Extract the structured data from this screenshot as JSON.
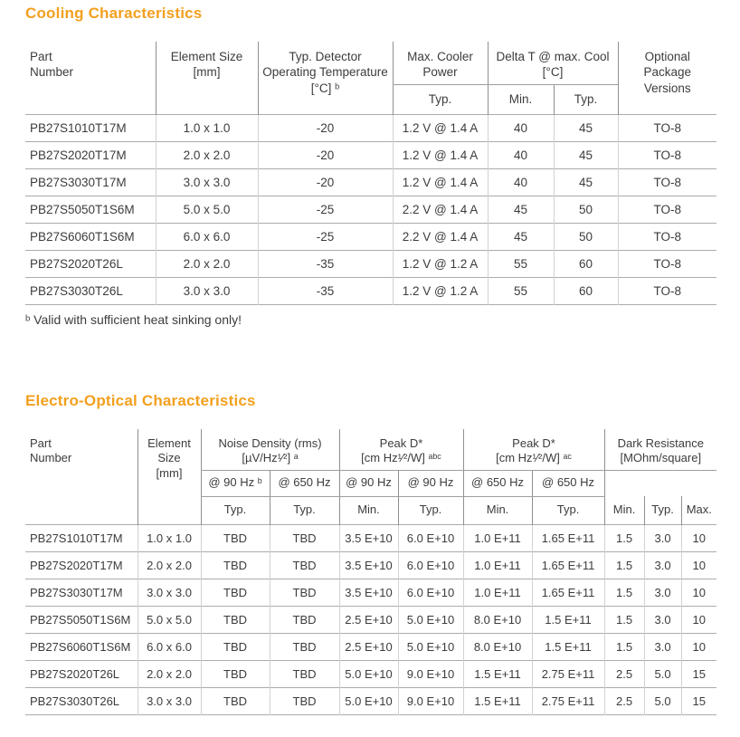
{
  "colors": {
    "accent_orange": "#f3a01f",
    "text": "#3c3c3c",
    "header_line": "#8f8f8f",
    "row_line": "#ababab",
    "column_line": "#d2d2d2"
  },
  "cooling": {
    "title": "Cooling Characteristics",
    "header": {
      "part_number": "Part\nNumber",
      "element_size": "Element Size\n[mm]",
      "detector_temp": "Typ. Detector\nOperating Temperature\n[°C] ᵇ",
      "cooler_power": "Max. Cooler\nPower",
      "delta_t": "Delta T @ max. Cool\n[°C]",
      "package": "Optional Package\nVersions",
      "subs": [
        "Typ.",
        "Min.",
        "Typ."
      ]
    },
    "rows": [
      [
        "PB27S1010T17M",
        "1.0 x 1.0",
        "-20",
        "1.2 V @ 1.4 A",
        "40",
        "45",
        "TO-8"
      ],
      [
        "PB27S2020T17M",
        "2.0 x 2.0",
        "-20",
        "1.2 V @ 1.4 A",
        "40",
        "45",
        "TO-8"
      ],
      [
        "PB27S3030T17M",
        "3.0 x 3.0",
        "-20",
        "1.2 V @ 1.4 A",
        "40",
        "45",
        "TO-8"
      ],
      [
        "PB27S5050T1S6M",
        "5.0 x 5.0",
        "-25",
        "2.2 V @ 1.4 A",
        "45",
        "50",
        "TO-8"
      ],
      [
        "PB27S6060T1S6M",
        "6.0 x 6.0",
        "-25",
        "2.2 V @ 1.4 A",
        "45",
        "50",
        "TO-8"
      ],
      [
        "PB27S2020T26L",
        "2.0 x 2.0",
        "-35",
        "1.2 V @ 1.2 A",
        "55",
        "60",
        "TO-8"
      ],
      [
        "PB27S3030T26L",
        "3.0 x 3.0",
        "-35",
        "1.2 V @ 1.2 A",
        "55",
        "60",
        "TO-8"
      ]
    ],
    "footnote": "ᵇ Valid with sufficient heat sinking only!"
  },
  "electro": {
    "title": "Electro-Optical Characteristics",
    "header": {
      "part_number": "Part\nNumber",
      "element_size": "Element\nSize\n[mm]",
      "noise_density": "Noise Density (rms)\n[µV/Hz¹⁄²] ᵃ",
      "peak_d_90": "Peak D*\n[cm Hz¹⁄²/W] ᵃᵇᶜ",
      "peak_d_650": "Peak D*\n[cm Hz¹⁄²/W] ᵃᶜ",
      "dark_resistance": "Dark Resistance\n[MOhm/square]",
      "freqs": [
        "@ 90 Hz ᵇ",
        "@ 650 Hz",
        "@ 90 Hz",
        "@ 90 Hz",
        "@ 650 Hz",
        "@ 650 Hz"
      ],
      "stats": [
        "Typ.",
        "Typ.",
        "Min.",
        "Typ.",
        "Min.",
        "Typ.",
        "Min.",
        "Typ.",
        "Max."
      ]
    },
    "rows": [
      [
        "PB27S1010T17M",
        "1.0 x 1.0",
        "TBD",
        "TBD",
        "3.5 E+10",
        "6.0 E+10",
        "1.0 E+11",
        "1.65 E+11",
        "1.5",
        "3.0",
        "10"
      ],
      [
        "PB27S2020T17M",
        "2.0 x 2.0",
        "TBD",
        "TBD",
        "3.5 E+10",
        "6.0 E+10",
        "1.0 E+11",
        "1.65 E+11",
        "1.5",
        "3.0",
        "10"
      ],
      [
        "PB27S3030T17M",
        "3.0 x 3.0",
        "TBD",
        "TBD",
        "3.5 E+10",
        "6.0 E+10",
        "1.0 E+11",
        "1.65 E+11",
        "1.5",
        "3.0",
        "10"
      ],
      [
        "PB27S5050T1S6M",
        "5.0 x 5.0",
        "TBD",
        "TBD",
        "2.5 E+10",
        "5.0 E+10",
        "8.0 E+10",
        "1.5 E+11",
        "1.5",
        "3.0",
        "10"
      ],
      [
        "PB27S6060T1S6M",
        "6.0 x 6.0",
        "TBD",
        "TBD",
        "2.5 E+10",
        "5.0 E+10",
        "8.0 E+10",
        "1.5 E+11",
        "1.5",
        "3.0",
        "10"
      ],
      [
        "PB27S2020T26L",
        "2.0 x 2.0",
        "TBD",
        "TBD",
        "5.0 E+10",
        "9.0 E+10",
        "1.5 E+11",
        "2.75 E+11",
        "2.5",
        "5.0",
        "15"
      ],
      [
        "PB27S3030T26L",
        "3.0 x 3.0",
        "TBD",
        "TBD",
        "5.0 E+10",
        "9.0 E+10",
        "1.5 E+11",
        "2.75 E+11",
        "2.5",
        "5.0",
        "15"
      ]
    ]
  }
}
